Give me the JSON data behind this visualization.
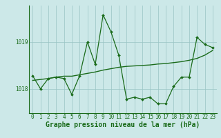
{
  "x": [
    0,
    1,
    2,
    3,
    4,
    5,
    6,
    7,
    8,
    9,
    10,
    11,
    12,
    13,
    14,
    15,
    16,
    17,
    18,
    19,
    20,
    21,
    22,
    23
  ],
  "y_main": [
    1018.28,
    1018.0,
    1018.22,
    1018.25,
    1018.22,
    1017.88,
    1018.28,
    1019.0,
    1018.52,
    1019.58,
    1019.22,
    1018.72,
    1017.78,
    1017.82,
    1017.78,
    1017.82,
    1017.68,
    1017.68,
    1018.05,
    1018.25,
    1018.25,
    1019.1,
    1018.95,
    1018.88
  ],
  "y_trend": [
    1018.18,
    1018.2,
    1018.22,
    1018.25,
    1018.27,
    1018.27,
    1018.3,
    1018.33,
    1018.36,
    1018.4,
    1018.43,
    1018.46,
    1018.48,
    1018.49,
    1018.5,
    1018.51,
    1018.53,
    1018.54,
    1018.56,
    1018.58,
    1018.61,
    1018.65,
    1018.72,
    1018.82
  ],
  "ylim": [
    1017.48,
    1019.78
  ],
  "yticks": [
    1018,
    1019
  ],
  "xlim": [
    -0.5,
    23.5
  ],
  "xticks": [
    0,
    1,
    2,
    3,
    4,
    5,
    6,
    7,
    8,
    9,
    10,
    11,
    12,
    13,
    14,
    15,
    16,
    17,
    18,
    19,
    20,
    21,
    22,
    23
  ],
  "line_color": "#1a6b1a",
  "bg_color": "#cce8e8",
  "grid_color": "#99c4c4",
  "xlabel": "Graphe pression niveau de la mer (hPa)",
  "tick_fontsize": 5.5,
  "label_fontsize": 7.0
}
